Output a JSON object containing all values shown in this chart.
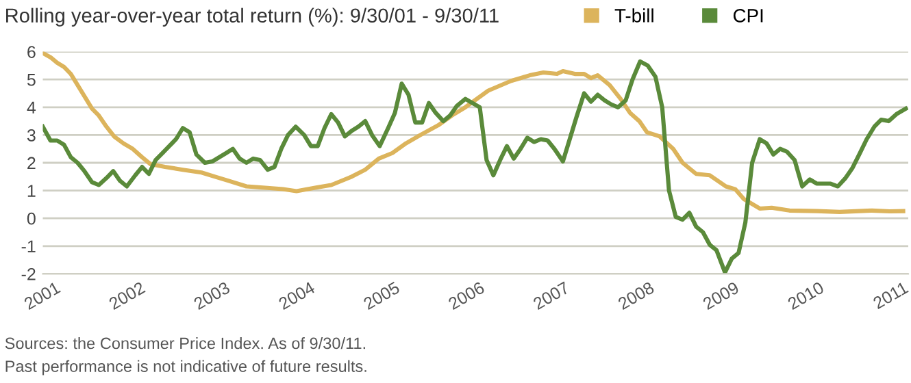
{
  "chart_data": {
    "type": "line",
    "title": "Rolling year-over-year total return (%): 9/30/01 - 9/30/11",
    "annotations": [
      "Sources: the Consumer Price Index. As of 9/30/11.",
      "Past performance is not indicative of future results."
    ],
    "xlim": [
      2001,
      2011.2
    ],
    "xticks": [
      2001,
      2002,
      2003,
      2004,
      2005,
      2006,
      2007,
      2008,
      2009,
      2010,
      2011
    ],
    "ylim": [
      -2,
      6
    ],
    "yticks": [
      -2,
      -1,
      0,
      1,
      2,
      3,
      4,
      5,
      6
    ],
    "grid": "y",
    "legend": "top right",
    "marker": "none",
    "line_style": "solid",
    "series": [
      {
        "name": "T-bill",
        "color": "#dcb45c",
        "x": [
          2001.0,
          2001.09,
          2001.17,
          2001.25,
          2001.33,
          2001.41,
          2001.49,
          2001.58,
          2001.66,
          2001.75,
          2001.84,
          2001.95,
          2002.06,
          2002.17,
          2002.27,
          2002.44,
          2002.65,
          2002.87,
          2003.03,
          2003.19,
          2003.4,
          2003.62,
          2003.83,
          2003.99,
          2004.21,
          2004.4,
          2004.64,
          2004.8,
          2004.96,
          2005.12,
          2005.28,
          2005.45,
          2005.66,
          2005.82,
          2005.98,
          2006.25,
          2006.52,
          2006.74,
          2006.9,
          2007.06,
          2007.13,
          2007.27,
          2007.38,
          2007.46,
          2007.54,
          2007.68,
          2007.81,
          2007.92,
          2008.03,
          2008.12,
          2008.27,
          2008.43,
          2008.54,
          2008.7,
          2008.86,
          2009.05,
          2009.16,
          2009.26,
          2009.45,
          2009.59,
          2009.8,
          2010.12,
          2010.39,
          2010.77,
          2010.98,
          2011.14
        ],
        "values": [
          5.95,
          5.8,
          5.6,
          5.45,
          5.2,
          4.8,
          4.4,
          3.95,
          3.7,
          3.3,
          2.95,
          2.7,
          2.5,
          2.2,
          1.95,
          1.85,
          1.75,
          1.65,
          1.5,
          1.35,
          1.15,
          1.1,
          1.05,
          0.98,
          1.1,
          1.2,
          1.5,
          1.75,
          2.15,
          2.35,
          2.7,
          3.0,
          3.35,
          3.7,
          4.0,
          4.6,
          4.95,
          5.15,
          5.25,
          5.2,
          5.3,
          5.2,
          5.2,
          5.05,
          5.15,
          4.8,
          4.3,
          3.8,
          3.5,
          3.1,
          2.95,
          2.5,
          2.0,
          1.6,
          1.55,
          1.15,
          1.05,
          0.7,
          0.35,
          0.38,
          0.28,
          0.26,
          0.23,
          0.28,
          0.25,
          0.26
        ]
      },
      {
        "name": "CPI",
        "color": "#5a8a3a",
        "x": [
          2001.0,
          2001.09,
          2001.17,
          2001.25,
          2001.33,
          2001.41,
          2001.49,
          2001.58,
          2001.66,
          2001.75,
          2001.83,
          2001.91,
          2001.99,
          2002.09,
          2002.17,
          2002.25,
          2002.33,
          2002.41,
          2002.49,
          2002.57,
          2002.65,
          2002.73,
          2002.81,
          2002.91,
          2003.0,
          2003.08,
          2003.16,
          2003.24,
          2003.32,
          2003.4,
          2003.48,
          2003.56,
          2003.65,
          2003.73,
          2003.81,
          2003.89,
          2003.98,
          2004.08,
          2004.16,
          2004.24,
          2004.32,
          2004.4,
          2004.48,
          2004.56,
          2004.64,
          2004.72,
          2004.8,
          2004.88,
          2004.97,
          2005.07,
          2005.15,
          2005.23,
          2005.31,
          2005.39,
          2005.47,
          2005.55,
          2005.63,
          2005.72,
          2005.8,
          2005.88,
          2005.98,
          2006.15,
          2006.23,
          2006.31,
          2006.39,
          2006.47,
          2006.55,
          2006.63,
          2006.71,
          2006.79,
          2006.87,
          2006.95,
          2007.03,
          2007.13,
          2007.21,
          2007.29,
          2007.38,
          2007.46,
          2007.54,
          2007.62,
          2007.7,
          2007.78,
          2007.87,
          2007.95,
          2008.04,
          2008.13,
          2008.22,
          2008.3,
          2008.38,
          2008.46,
          2008.54,
          2008.62,
          2008.7,
          2008.78,
          2008.86,
          2008.94,
          2009.04,
          2009.12,
          2009.2,
          2009.28,
          2009.36,
          2009.45,
          2009.53,
          2009.61,
          2009.69,
          2009.77,
          2009.86,
          2009.95,
          2010.04,
          2010.12,
          2010.2,
          2010.28,
          2010.37,
          2010.46,
          2010.54,
          2010.63,
          2010.71,
          2010.8,
          2010.88,
          2010.97,
          2011.06,
          2011.17
        ],
        "values": [
          3.3,
          2.8,
          2.8,
          2.65,
          2.2,
          2.0,
          1.7,
          1.3,
          1.2,
          1.45,
          1.7,
          1.35,
          1.15,
          1.55,
          1.85,
          1.6,
          2.1,
          2.35,
          2.6,
          2.85,
          3.25,
          3.1,
          2.3,
          2.0,
          2.05,
          2.2,
          2.35,
          2.5,
          2.15,
          2.0,
          2.15,
          2.1,
          1.75,
          1.85,
          2.5,
          3.0,
          3.3,
          3.0,
          2.6,
          2.6,
          3.25,
          3.75,
          3.45,
          2.95,
          3.15,
          3.3,
          3.5,
          3.0,
          2.6,
          3.25,
          3.8,
          4.85,
          4.45,
          3.45,
          3.45,
          4.15,
          3.8,
          3.5,
          3.7,
          4.05,
          4.3,
          4.0,
          2.1,
          1.55,
          2.1,
          2.6,
          2.15,
          2.5,
          2.9,
          2.75,
          2.85,
          2.8,
          2.5,
          2.05,
          2.85,
          3.65,
          4.5,
          4.2,
          4.45,
          4.25,
          4.1,
          4.0,
          4.25,
          5.0,
          5.65,
          5.5,
          5.1,
          4.0,
          1.0,
          0.05,
          -0.05,
          0.2,
          -0.3,
          -0.5,
          -0.95,
          -1.15,
          -1.95,
          -1.45,
          -1.25,
          -0.15,
          2.0,
          2.85,
          2.7,
          2.3,
          2.5,
          2.4,
          2.1,
          1.15,
          1.4,
          1.25,
          1.25,
          1.25,
          1.15,
          1.45,
          1.8,
          2.35,
          2.85,
          3.3,
          3.55,
          3.5,
          3.75,
          3.95
        ]
      }
    ]
  }
}
